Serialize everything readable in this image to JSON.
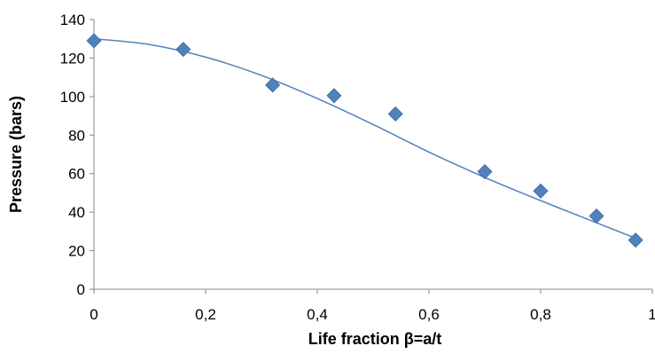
{
  "chart_data": {
    "type": "scatter",
    "title": "",
    "xlabel": "Life fraction  β=a/t",
    "ylabel": "Pressure (bars)",
    "xlim": [
      0,
      1
    ],
    "ylim": [
      0,
      140
    ],
    "x_ticks": [
      0,
      0.2,
      0.4,
      0.6,
      0.8,
      1
    ],
    "x_tick_labels": [
      "0",
      "0,2",
      "0,4",
      "0,6",
      "0,8",
      "1"
    ],
    "y_ticks": [
      0,
      20,
      40,
      60,
      80,
      100,
      120,
      140
    ],
    "y_tick_labels": [
      "0",
      "20",
      "40",
      "60",
      "80",
      "100",
      "120",
      "140"
    ],
    "grid": false,
    "legend": "none",
    "marker_color": "#4F81BD",
    "trendline_color": "#4F81BD",
    "series": [
      {
        "marker": "diamond",
        "x": [
          0,
          0.16,
          0.32,
          0.43,
          0.54,
          0.7,
          0.8,
          0.9,
          0.97
        ],
        "y": [
          129,
          124.5,
          106,
          100.5,
          91,
          61,
          51,
          38,
          25.5
        ]
      }
    ],
    "trendline": {
      "type": "polynomial",
      "x": [
        0,
        0.1,
        0.2,
        0.3,
        0.4,
        0.5,
        0.6,
        0.7,
        0.8,
        0.9,
        0.97
      ],
      "y": [
        130,
        127,
        120.5,
        111,
        99,
        85.5,
        71.2,
        58,
        46,
        34.5,
        26.5
      ]
    }
  }
}
